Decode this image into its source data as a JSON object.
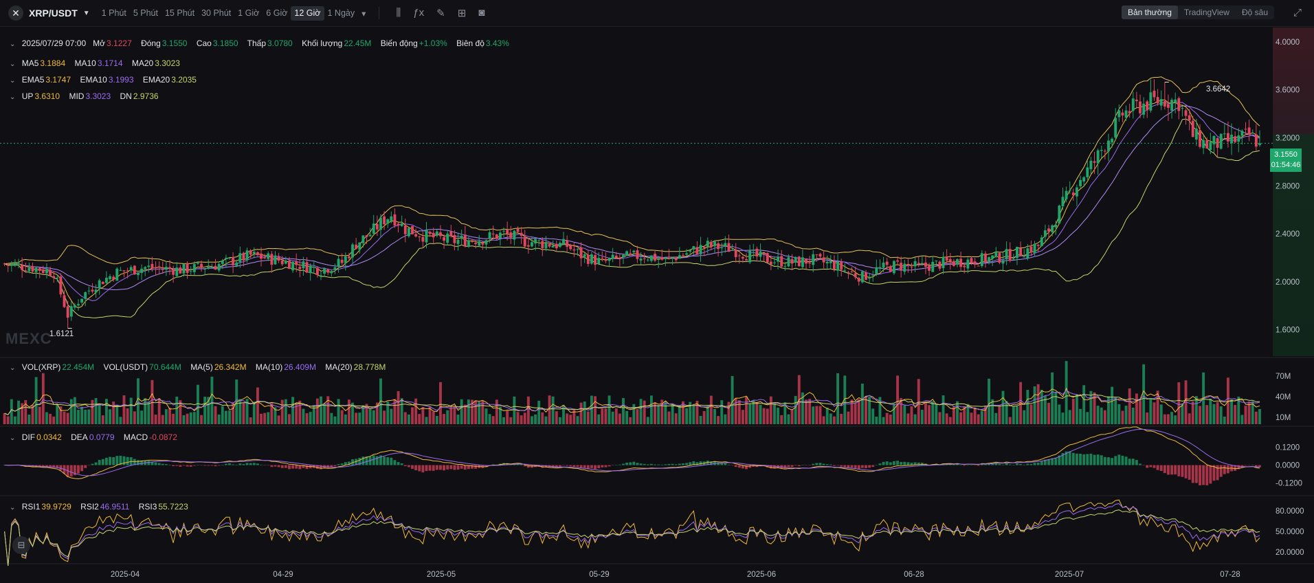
{
  "header": {
    "pair": "XRP/USDT",
    "timeframes": [
      "1 Phút",
      "5 Phút",
      "15 Phút",
      "30 Phút",
      "1 Giờ",
      "6 Giờ",
      "12 Giờ",
      "1 Ngày"
    ],
    "active_timeframe": "12 Giờ",
    "modes": [
      "Bản thường",
      "TradingView",
      "Độ sâu"
    ],
    "active_mode": "Bản thường"
  },
  "ohlc": {
    "date": "2025/07/29 07:00",
    "open_label": "Mở",
    "open": "3.1227",
    "close_label": "Đóng",
    "close": "3.1550",
    "high_label": "Cao",
    "high": "3.1850",
    "low_label": "Thấp",
    "low": "3.0780",
    "vol_label": "Khối lượng",
    "vol": "22.45M",
    "chg_label": "Biến động",
    "chg": "+1.03%",
    "amp_label": "Biên độ",
    "amp": "3.43%"
  },
  "ma": {
    "ma5_label": "MA5",
    "ma5": "3.1884",
    "ma10_label": "MA10",
    "ma10": "3.1714",
    "ma20_label": "MA20",
    "ma20": "3.3023"
  },
  "ema": {
    "ema5_label": "EMA5",
    "ema5": "3.1747",
    "ema10_label": "EMA10",
    "ema10": "3.1993",
    "ema20_label": "EMA20",
    "ema20": "3.2035"
  },
  "boll": {
    "up_label": "UP",
    "up": "3.6310",
    "mid_label": "MID",
    "mid": "3.3023",
    "dn_label": "DN",
    "dn": "2.9736"
  },
  "vol_legend": {
    "vx_label": "VOL(XRP)",
    "vx": "22.454M",
    "vu_label": "VOL(USDT)",
    "vu": "70.644M",
    "m5_label": "MA(5)",
    "m5": "26.342M",
    "m10_label": "MA(10)",
    "m10": "26.409M",
    "m20_label": "MA(20)",
    "m20": "28.778M"
  },
  "macd_legend": {
    "dif_label": "DIF",
    "dif": "0.0342",
    "dea_label": "DEA",
    "dea": "0.0779",
    "macd_label": "MACD",
    "macd": "-0.0872"
  },
  "rsi_legend": {
    "r1_label": "RSI1",
    "r1": "39.9729",
    "r2_label": "RSI2",
    "r2": "46.9511",
    "r3_label": "RSI3",
    "r3": "55.7223"
  },
  "watermark": "MEXC",
  "last_price": {
    "price": "3.1550",
    "countdown": "01:54:46"
  },
  "annotations": {
    "high": "3.6642",
    "low": "1.6121"
  },
  "colors": {
    "up": "#1fa66a",
    "down": "#e0475f",
    "ma5": "#f0b93a",
    "ma10": "#9a6cf0",
    "ma20": "#c7d46a",
    "boll": "#e8c15a",
    "bg": "#101014"
  },
  "chart_data": {
    "type": "candlestick",
    "x_ticks": [
      "2025-04",
      "04-29",
      "2025-05",
      "05-29",
      "2025-06",
      "06-28",
      "2025-07",
      "07-28"
    ],
    "price_axis": {
      "ticks": [
        4.0,
        3.6,
        3.2,
        2.8,
        2.4,
        2.0,
        1.6
      ],
      "labels": [
        "4.0000",
        "3.6000",
        "3.2000",
        "2.8000",
        "2.4000",
        "2.0000",
        "1.6000"
      ],
      "range": [
        1.38,
        4.12
      ]
    },
    "volume_axis": {
      "ticks": [
        70,
        40,
        10
      ],
      "labels": [
        "70M",
        "40M",
        "10M"
      ],
      "range": [
        0,
        95
      ]
    },
    "macd_axis": {
      "ticks": [
        0.12,
        0.0,
        -0.12
      ],
      "labels": [
        "0.1200",
        "0.0000",
        "-0.1200"
      ],
      "range": [
        -0.19,
        0.25
      ]
    },
    "rsi_axis": {
      "ticks": [
        80,
        50,
        20
      ],
      "labels": [
        "80.0000",
        "50.0000",
        "20.0000"
      ],
      "range": [
        5,
        100
      ]
    },
    "close_path": [
      [
        0,
        2.15
      ],
      [
        8,
        2.12
      ],
      [
        14,
        2.08
      ],
      [
        18,
        1.72
      ],
      [
        22,
        1.88
      ],
      [
        26,
        1.98
      ],
      [
        32,
        2.08
      ],
      [
        40,
        2.12
      ],
      [
        50,
        2.1
      ],
      [
        56,
        2.12
      ],
      [
        62,
        2.15
      ],
      [
        70,
        2.22
      ],
      [
        78,
        2.18
      ],
      [
        84,
        2.14
      ],
      [
        90,
        2.1
      ],
      [
        96,
        2.16
      ],
      [
        100,
        2.32
      ],
      [
        104,
        2.4
      ],
      [
        108,
        2.52
      ],
      [
        110,
        2.56
      ],
      [
        114,
        2.44
      ],
      [
        120,
        2.38
      ],
      [
        128,
        2.34
      ],
      [
        136,
        2.36
      ],
      [
        142,
        2.4
      ],
      [
        148,
        2.34
      ],
      [
        154,
        2.32
      ],
      [
        160,
        2.3
      ],
      [
        164,
        2.22
      ],
      [
        170,
        2.16
      ],
      [
        176,
        2.2
      ],
      [
        182,
        2.22
      ],
      [
        188,
        2.18
      ],
      [
        194,
        2.24
      ],
      [
        200,
        2.3
      ],
      [
        206,
        2.28
      ],
      [
        212,
        2.22
      ],
      [
        218,
        2.18
      ],
      [
        224,
        2.16
      ],
      [
        230,
        2.18
      ],
      [
        236,
        2.14
      ],
      [
        240,
        2.08
      ],
      [
        244,
        2.04
      ],
      [
        248,
        2.1
      ],
      [
        254,
        2.14
      ],
      [
        260,
        2.12
      ],
      [
        268,
        2.16
      ],
      [
        276,
        2.18
      ],
      [
        282,
        2.2
      ],
      [
        288,
        2.24
      ],
      [
        294,
        2.3
      ],
      [
        298,
        2.48
      ],
      [
        302,
        2.7
      ],
      [
        306,
        2.86
      ],
      [
        310,
        3.0
      ],
      [
        314,
        3.2
      ],
      [
        318,
        3.4
      ],
      [
        322,
        3.46
      ],
      [
        326,
        3.5
      ],
      [
        330,
        3.52
      ],
      [
        334,
        3.5
      ],
      [
        338,
        3.22
      ],
      [
        342,
        3.14
      ],
      [
        346,
        3.16
      ],
      [
        350,
        3.18
      ],
      [
        354,
        3.22
      ],
      [
        357,
        3.16
      ]
    ],
    "high_annotation": 3.6642,
    "low_annotation": 1.6121,
    "last_price": 3.155
  }
}
